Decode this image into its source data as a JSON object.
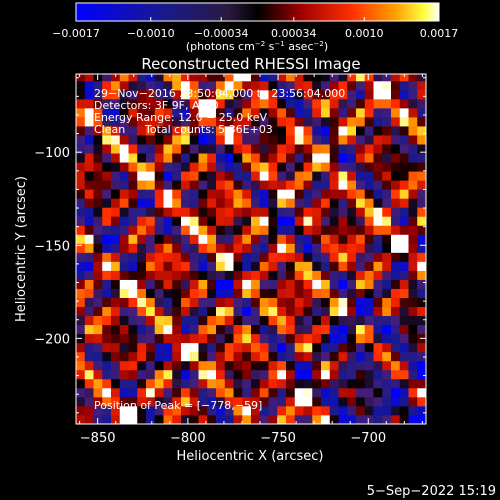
{
  "chart_data": [
    {
      "type": "colorbar",
      "colormap": "hot-cold (blue-black-red-yellow-white)",
      "range": [
        -0.0017,
        0.0017
      ],
      "ticks": [
        {
          "value": -0.0017,
          "label": "−0.0017"
        },
        {
          "value": -0.001,
          "label": "−0.0010"
        },
        {
          "value": -0.00034,
          "label": "−0.00034"
        },
        {
          "value": 0.00034,
          "label": "0.00034"
        },
        {
          "value": 0.001,
          "label": "0.0010"
        },
        {
          "value": 0.0017,
          "label": "0.0017"
        }
      ],
      "unit_label": "(photons cm",
      "unit_exp1": "−2",
      "unit_mid": " s",
      "unit_exp2": "−1",
      "unit_end": " asec",
      "unit_exp3": "−2",
      "unit_close": ")"
    },
    {
      "type": "heatmap",
      "title": "Reconstructed RHESSI Image",
      "xlabel": "Heliocentric X (arcsec)",
      "ylabel": "Heliocentric Y (arcsec)",
      "xlim": [
        -862,
        -668
      ],
      "ylim": [
        -246,
        -58
      ],
      "xticks": [
        {
          "value": -850,
          "label": "−850"
        },
        {
          "value": -800,
          "label": "−800"
        },
        {
          "value": -750,
          "label": "−750"
        },
        {
          "value": -700,
          "label": "−700"
        }
      ],
      "yticks": [
        {
          "value": -100,
          "label": "−100"
        },
        {
          "value": -150,
          "label": "−150"
        },
        {
          "value": -200,
          "label": "−200"
        }
      ],
      "peak": [
        -778,
        -59
      ],
      "grid": false,
      "pixel_size_arcsec": 4.85
    }
  ],
  "annotations": {
    "time_range": "29−Nov−2016 23:50:04.000 to 23:56:04.000",
    "detectors": "Detectors: 3F 9F, Att 0",
    "energy_range": "Energy Range: 12.0 − 25.0 keV",
    "method": "Clean",
    "total_counts": "Total counts: 5.36E+03",
    "peak_position": "Position of Peak = [−778,−59]"
  },
  "footer_date": "5−Sep−2022 15:19"
}
